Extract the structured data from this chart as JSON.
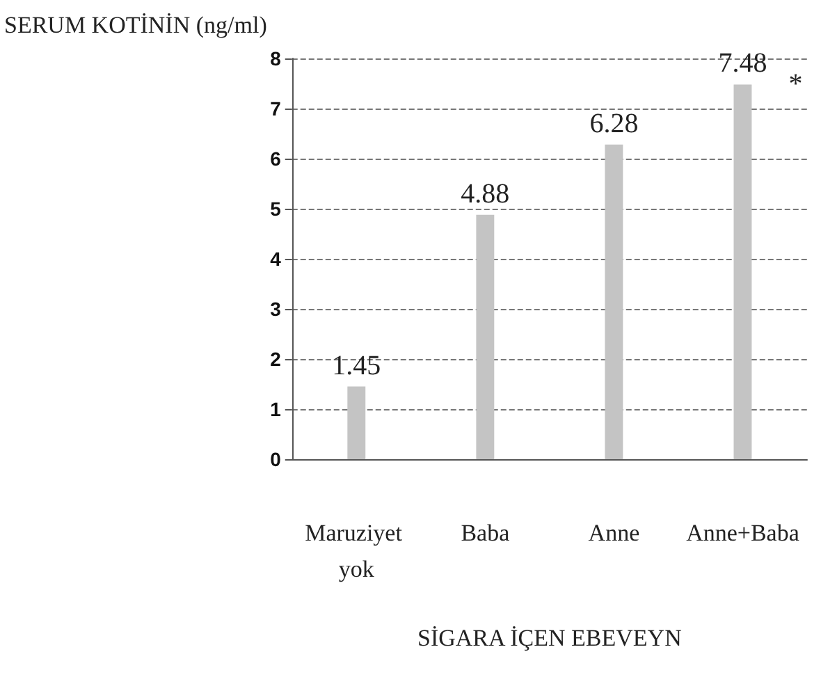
{
  "chart_data": {
    "type": "bar",
    "ylabel": "SERUM KOTİNİN (ng/ml)",
    "xlabel": "SİGARA İÇEN EBEVEYN",
    "categories": [
      "Maruziyet yok",
      "Baba",
      "Anne",
      "Anne+Baba"
    ],
    "values": [
      1.45,
      4.88,
      6.28,
      7.48
    ],
    "color": "#c4c4c4",
    "ylim": [
      0,
      8
    ],
    "yticks": [
      0,
      1,
      2,
      3,
      4,
      5,
      6,
      7,
      8
    ],
    "grid": "y",
    "data_labels": true,
    "annotations": [
      {
        "text": "*",
        "x": "Anne+Baba",
        "y": 7.48
      }
    ]
  }
}
